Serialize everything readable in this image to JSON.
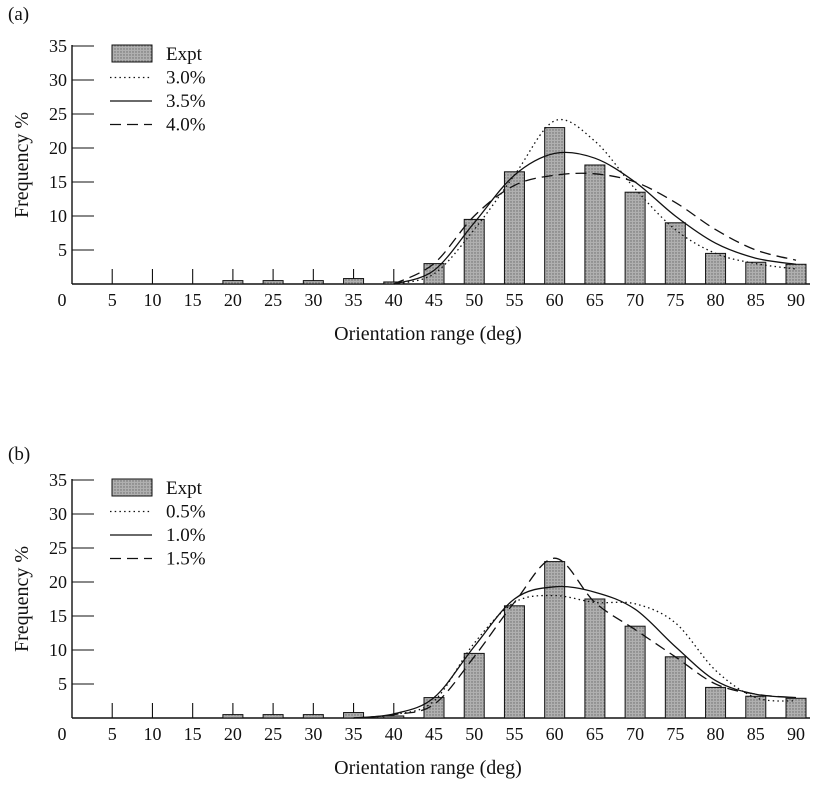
{
  "chart_data": [
    {
      "panel_label": "(a)",
      "type": "bar",
      "xlabel": "Orientation range (deg)",
      "ylabel": "Frequency %",
      "x_ticks": [
        0,
        5,
        10,
        15,
        20,
        25,
        30,
        35,
        40,
        45,
        50,
        55,
        60,
        65,
        70,
        75,
        80,
        85,
        90
      ],
      "y_ticks": [
        5,
        10,
        15,
        20,
        25,
        30,
        35
      ],
      "xlim": [
        0,
        92
      ],
      "ylim": [
        0,
        35
      ],
      "grid": false,
      "legend_position": "top-left",
      "bars": {
        "name": "Expt",
        "x": [
          20,
          25,
          30,
          35,
          40,
          45,
          50,
          55,
          60,
          65,
          70,
          75,
          80,
          85,
          90
        ],
        "values": [
          0.5,
          0.5,
          0.5,
          0.8,
          0.3,
          3.0,
          9.5,
          16.5,
          23.0,
          17.5,
          13.5,
          9.0,
          4.5,
          3.2,
          2.9
        ]
      },
      "series": [
        {
          "name": "3.0%",
          "style": "dotted",
          "x": [
            40,
            45,
            50,
            55,
            60,
            65,
            70,
            75,
            80,
            85,
            90
          ],
          "y": [
            0,
            1.5,
            8.0,
            16.0,
            24.0,
            21.0,
            14.0,
            8.0,
            4.5,
            3.0,
            2.2
          ]
        },
        {
          "name": "3.5%",
          "style": "solid",
          "x": [
            40,
            45,
            50,
            55,
            60,
            65,
            70,
            75,
            80,
            85,
            90
          ],
          "y": [
            0,
            2.0,
            9.0,
            16.0,
            19.2,
            18.5,
            15.0,
            10.0,
            6.0,
            3.8,
            2.9
          ]
        },
        {
          "name": "4.0%",
          "style": "dashed",
          "x": [
            40,
            45,
            50,
            55,
            60,
            65,
            70,
            75,
            80,
            85,
            90
          ],
          "y": [
            0,
            3.0,
            10.0,
            14.5,
            16.0,
            16.2,
            15.0,
            12.0,
            8.0,
            5.0,
            3.5
          ]
        }
      ]
    },
    {
      "panel_label": "(b)",
      "type": "bar",
      "xlabel": "Orientation range (deg)",
      "ylabel": "Frequency %",
      "x_ticks": [
        0,
        5,
        10,
        15,
        20,
        25,
        30,
        35,
        40,
        45,
        50,
        55,
        60,
        65,
        70,
        75,
        80,
        85,
        90
      ],
      "y_ticks": [
        5,
        10,
        15,
        20,
        25,
        30,
        35
      ],
      "xlim": [
        0,
        92
      ],
      "ylim": [
        0,
        35
      ],
      "grid": false,
      "legend_position": "top-left",
      "bars": {
        "name": "Expt",
        "x": [
          20,
          25,
          30,
          35,
          40,
          45,
          50,
          55,
          60,
          65,
          70,
          75,
          80,
          85,
          90
        ],
        "values": [
          0.5,
          0.5,
          0.5,
          0.8,
          0.3,
          3.0,
          9.5,
          16.5,
          23.0,
          17.5,
          13.5,
          9.0,
          4.5,
          3.2,
          2.9
        ]
      },
      "series": [
        {
          "name": "0.5%",
          "style": "dotted",
          "x": [
            35,
            40,
            45,
            50,
            55,
            60,
            65,
            70,
            75,
            80,
            85,
            90
          ],
          "y": [
            0,
            0.5,
            2.5,
            11.0,
            17.0,
            18.0,
            17.0,
            16.8,
            14.0,
            7.0,
            3.0,
            2.5
          ]
        },
        {
          "name": "1.0%",
          "style": "solid",
          "x": [
            35,
            40,
            45,
            50,
            55,
            60,
            65,
            70,
            75,
            80,
            85,
            90
          ],
          "y": [
            0,
            0.6,
            3.0,
            10.5,
            17.5,
            19.3,
            18.5,
            16.0,
            10.5,
            5.5,
            3.5,
            3.0
          ]
        },
        {
          "name": "1.5%",
          "style": "dashed",
          "x": [
            35,
            40,
            45,
            50,
            55,
            60,
            65,
            70,
            75,
            80,
            85,
            90
          ],
          "y": [
            0,
            0.5,
            2.0,
            9.0,
            17.0,
            23.5,
            17.0,
            13.0,
            9.0,
            5.0,
            3.5,
            3.0
          ]
        }
      ]
    }
  ],
  "colors": {
    "bar_fill": "#a8a8a8",
    "bar_stroke": "#111111",
    "line": "#111111"
  }
}
